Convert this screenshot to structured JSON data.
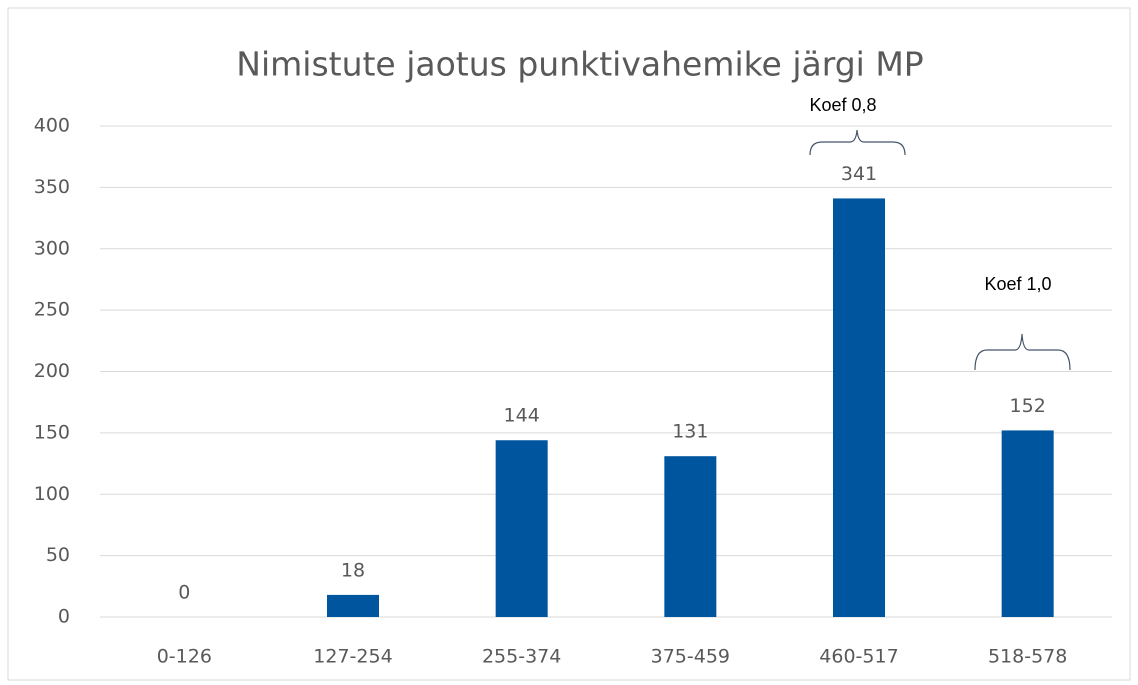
{
  "chart_data": {
    "type": "bar",
    "title": "Nimistute jaotus punktivahemike järgi MP",
    "categories": [
      "0-126",
      "127-254",
      "255-374",
      "375-459",
      "460-517",
      "518-578"
    ],
    "values": [
      0,
      18,
      144,
      131,
      341,
      152
    ],
    "color": "#00559f",
    "ylim": [
      0,
      400
    ],
    "yticks": [
      0,
      50,
      100,
      150,
      200,
      250,
      300,
      350,
      400
    ],
    "grid": true,
    "annotations": [
      "Koef 0,8",
      "Koef 1,0"
    ]
  }
}
